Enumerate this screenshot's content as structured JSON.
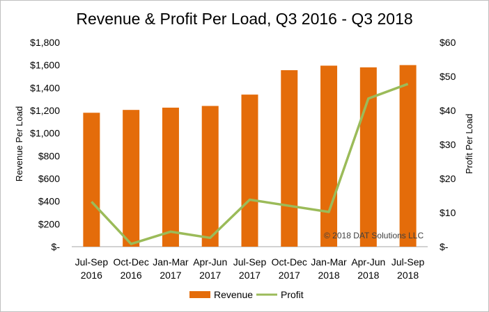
{
  "chart_data": {
    "type": "bar",
    "title": "Revenue & Profit Per Load, Q3 2016 - Q3 2018",
    "categories": [
      [
        "Jul-Sep",
        "2016"
      ],
      [
        "Oct-Dec",
        "2016"
      ],
      [
        "Jan-Mar",
        "2017"
      ],
      [
        "Apr-Jun",
        "2017"
      ],
      [
        "Jul-Sep",
        "2017"
      ],
      [
        "Oct-Dec",
        "2017"
      ],
      [
        "Jan-Mar",
        "2018"
      ],
      [
        "Apr-Jun",
        "2018"
      ],
      [
        "Jul-Sep",
        "2018"
      ]
    ],
    "series": [
      {
        "name": "Revenue",
        "type": "bar",
        "axis": "left",
        "color": "#E46C0A",
        "values": [
          1180,
          1205,
          1225,
          1240,
          1340,
          1555,
          1595,
          1580,
          1600
        ]
      },
      {
        "name": "Profit",
        "type": "line",
        "axis": "right",
        "color": "#9BBB59",
        "values": [
          13.2,
          0.8,
          4.4,
          2.6,
          13.8,
          12,
          10.2,
          43.5,
          47.8
        ]
      }
    ],
    "ylabel": "Revenue Per Load",
    "ylim": [
      0,
      1800
    ],
    "yticks": [
      "$-",
      "$200",
      "$400",
      "$600",
      "$800",
      "$1,000",
      "$1,200",
      "$1,400",
      "$1,600",
      "$1,800"
    ],
    "y2label": "Profit Per Load",
    "y2lim": [
      0,
      60
    ],
    "y2ticks": [
      "$-",
      "$10",
      "$20",
      "$30",
      "$40",
      "$50",
      "$60"
    ],
    "grid": false,
    "legend_position": "bottom",
    "annotation": "© 2018 DAT Solutions LLC"
  }
}
